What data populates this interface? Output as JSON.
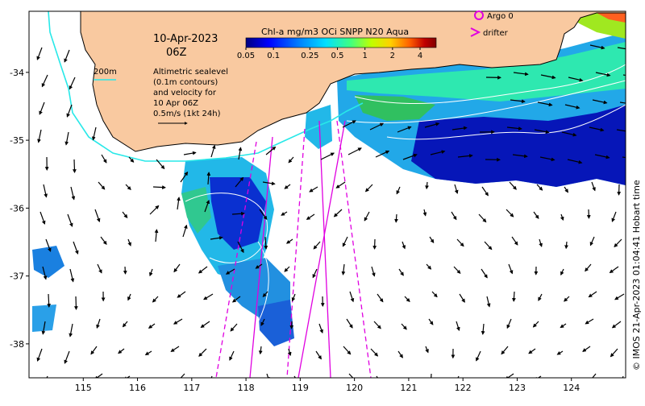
{
  "date_title": "10-Apr-2023",
  "time_title": "06Z",
  "depth_label": "200m",
  "altimetry_note": [
    "Altimetric sealevel",
    "(0.1m contours)",
    "and velocity for",
    "10 Apr 06Z",
    "0.5m/s (1kt 24h)"
  ],
  "colorbar": {
    "title": "Chl-a mg/m3 OCi SNPP N20 Aqua",
    "ticks": [
      "0.05",
      "0.1",
      "0.25",
      "0.5",
      "1",
      "2",
      "4"
    ],
    "tick_values": [
      0.05,
      0.1,
      0.25,
      0.5,
      1,
      2,
      4
    ],
    "range": [
      0.05,
      6
    ],
    "scale": "log",
    "colors": [
      "#00007f",
      "#0000ff",
      "#0080ff",
      "#00e0ff",
      "#40ff80",
      "#c0ff00",
      "#ffd000",
      "#ff6000",
      "#c00000",
      "#800000"
    ]
  },
  "legend": {
    "argo_label": "Argo 0",
    "argo_color": "#e000e0",
    "drifter_label": "drifter",
    "drifter_color": "#e000e0"
  },
  "x_axis": {
    "range": [
      114,
      125
    ],
    "ticks": [
      "115",
      "116",
      "117",
      "118",
      "119",
      "120",
      "121",
      "122",
      "123",
      "124"
    ],
    "tick_values": [
      115,
      116,
      117,
      118,
      119,
      120,
      121,
      122,
      123,
      124
    ]
  },
  "y_axis": {
    "range": [
      -38.5,
      -33.1
    ],
    "ticks": [
      "-34",
      "-35",
      "-36",
      "-37",
      "-38"
    ],
    "tick_values": [
      -34,
      -35,
      -36,
      -37,
      -38
    ]
  },
  "copyright": "© IMOS 21-Apr-2023 01:04:41 Hobart time",
  "colors": {
    "land": "#f9c9a0",
    "coastline": "#000000",
    "isobath_200m": "#28e8e8",
    "ssh_contour": "#ffffff",
    "velocity_arrow": "#000000",
    "drifter_track": "#e000e0"
  }
}
